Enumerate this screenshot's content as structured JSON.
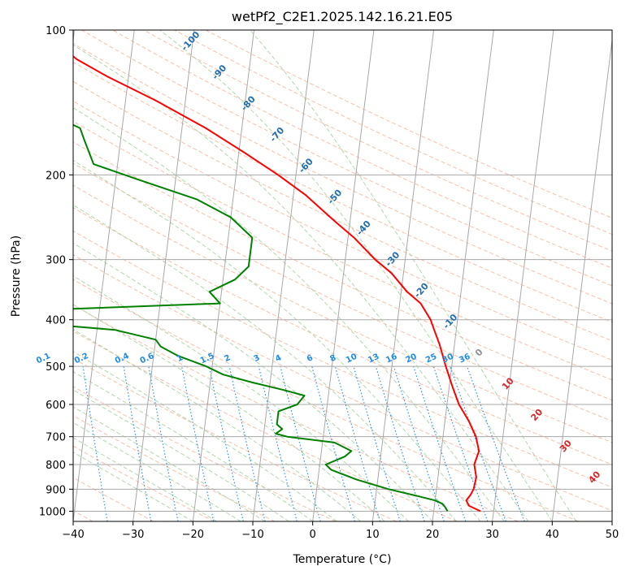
{
  "chart_data": {
    "type": "line",
    "diagram": "skew-T log-P",
    "title": "wetPf2_C2E1.2025.142.16.21.E05",
    "xlabel": "Temperature (°C)",
    "ylabel": "Pressure (hPa)",
    "xlim": [
      -40,
      50
    ],
    "ylim": [
      1050,
      100
    ],
    "y_scale": "log",
    "x_ticks": [
      "−40",
      "−30",
      "−20",
      "−10",
      "0",
      "10",
      "20",
      "30",
      "40",
      "50"
    ],
    "y_ticks": [
      "100",
      "200",
      "300",
      "400",
      "500",
      "600",
      "700",
      "800",
      "900",
      "1000"
    ],
    "grid": true,
    "dry_adiabat_labels": [
      "-100",
      "-90",
      "-80",
      "-70",
      "-60",
      "-50",
      "-40",
      "-30",
      "-20",
      "-10",
      "0",
      "10",
      "20",
      "30",
      "40"
    ],
    "mixing_ratio_labels": [
      "0.1",
      "0.2",
      "0.4",
      "0.6",
      "1",
      "1.5",
      "2",
      "3",
      "4",
      "6",
      "8",
      "10",
      "13",
      "16",
      "20",
      "25",
      "30",
      "36"
    ],
    "colors": {
      "temperature": "#ff0000",
      "dewpoint": "#008000",
      "isotherm": "#a8a8a8",
      "dry_adiabat": "#f5b59b",
      "moist_adiabat": "#a9d3a3",
      "mixing_ratio": "#1f8ce6",
      "adiabat_label_cold": "#1f6eb0",
      "adiabat_label_warm": "#d62728"
    },
    "series": [
      {
        "key": "temperature",
        "values": [
          [
            1000,
            27.8
          ],
          [
            975,
            25.8
          ],
          [
            950,
            25.2
          ],
          [
            925,
            25.8
          ],
          [
            900,
            26.2
          ],
          [
            850,
            26.4
          ],
          [
            800,
            25.8
          ],
          [
            750,
            26.3
          ],
          [
            700,
            25.5
          ],
          [
            650,
            24.0
          ],
          [
            600,
            22.0
          ],
          [
            550,
            20.5
          ],
          [
            500,
            19.0
          ],
          [
            450,
            17.5
          ],
          [
            420,
            16.3
          ],
          [
            400,
            15.5
          ],
          [
            370,
            13.5
          ],
          [
            350,
            11.0
          ],
          [
            320,
            8.0
          ],
          [
            300,
            5.0
          ],
          [
            270,
            1.0
          ],
          [
            250,
            -2.5
          ],
          [
            220,
            -8.0
          ],
          [
            200,
            -13.0
          ],
          [
            180,
            -19.0
          ],
          [
            160,
            -26.0
          ],
          [
            140,
            -35.0
          ],
          [
            125,
            -43.5
          ],
          [
            115,
            -49.0
          ],
          [
            108,
            -52.0
          ],
          [
            100,
            -56.0
          ]
        ]
      },
      {
        "key": "dewpoint",
        "values": [
          [
            1000,
            22.3
          ],
          [
            980,
            21.8
          ],
          [
            965,
            21.3
          ],
          [
            950,
            20.0
          ],
          [
            930,
            17.0
          ],
          [
            900,
            12.0
          ],
          [
            860,
            6.5
          ],
          [
            820,
            2.0
          ],
          [
            800,
            1.0
          ],
          [
            770,
            4.0
          ],
          [
            750,
            5.0
          ],
          [
            720,
            2.0
          ],
          [
            700,
            -6.0
          ],
          [
            690,
            -8.0
          ],
          [
            675,
            -7.0
          ],
          [
            660,
            -8.0
          ],
          [
            640,
            -8.0
          ],
          [
            620,
            -8.0
          ],
          [
            600,
            -5.0
          ],
          [
            575,
            -4.0
          ],
          [
            560,
            -7.5
          ],
          [
            540,
            -13.0
          ],
          [
            520,
            -18.0
          ],
          [
            500,
            -21.0
          ],
          [
            475,
            -26.0
          ],
          [
            455,
            -29.0
          ],
          [
            440,
            -30.0
          ],
          [
            420,
            -37.0
          ],
          [
            405,
            -52.0
          ],
          [
            395,
            -58.0
          ],
          [
            385,
            -58.0
          ],
          [
            370,
            -20.0
          ],
          [
            350,
            -22.0
          ],
          [
            330,
            -18.0
          ],
          [
            310,
            -16.0
          ],
          [
            290,
            -16.0
          ],
          [
            270,
            -16.0
          ],
          [
            245,
            -20.0
          ],
          [
            225,
            -26.0
          ],
          [
            205,
            -36.0
          ],
          [
            190,
            -44.0
          ],
          [
            170,
            -46.0
          ],
          [
            160,
            -47.0
          ],
          [
            150,
            -52.0
          ],
          [
            140,
            -58.0
          ],
          [
            130,
            -64.0
          ],
          [
            122,
            -67.0
          ],
          [
            115,
            -67.0
          ],
          [
            108,
            -65.0
          ],
          [
            100,
            -62.0
          ]
        ]
      }
    ]
  }
}
